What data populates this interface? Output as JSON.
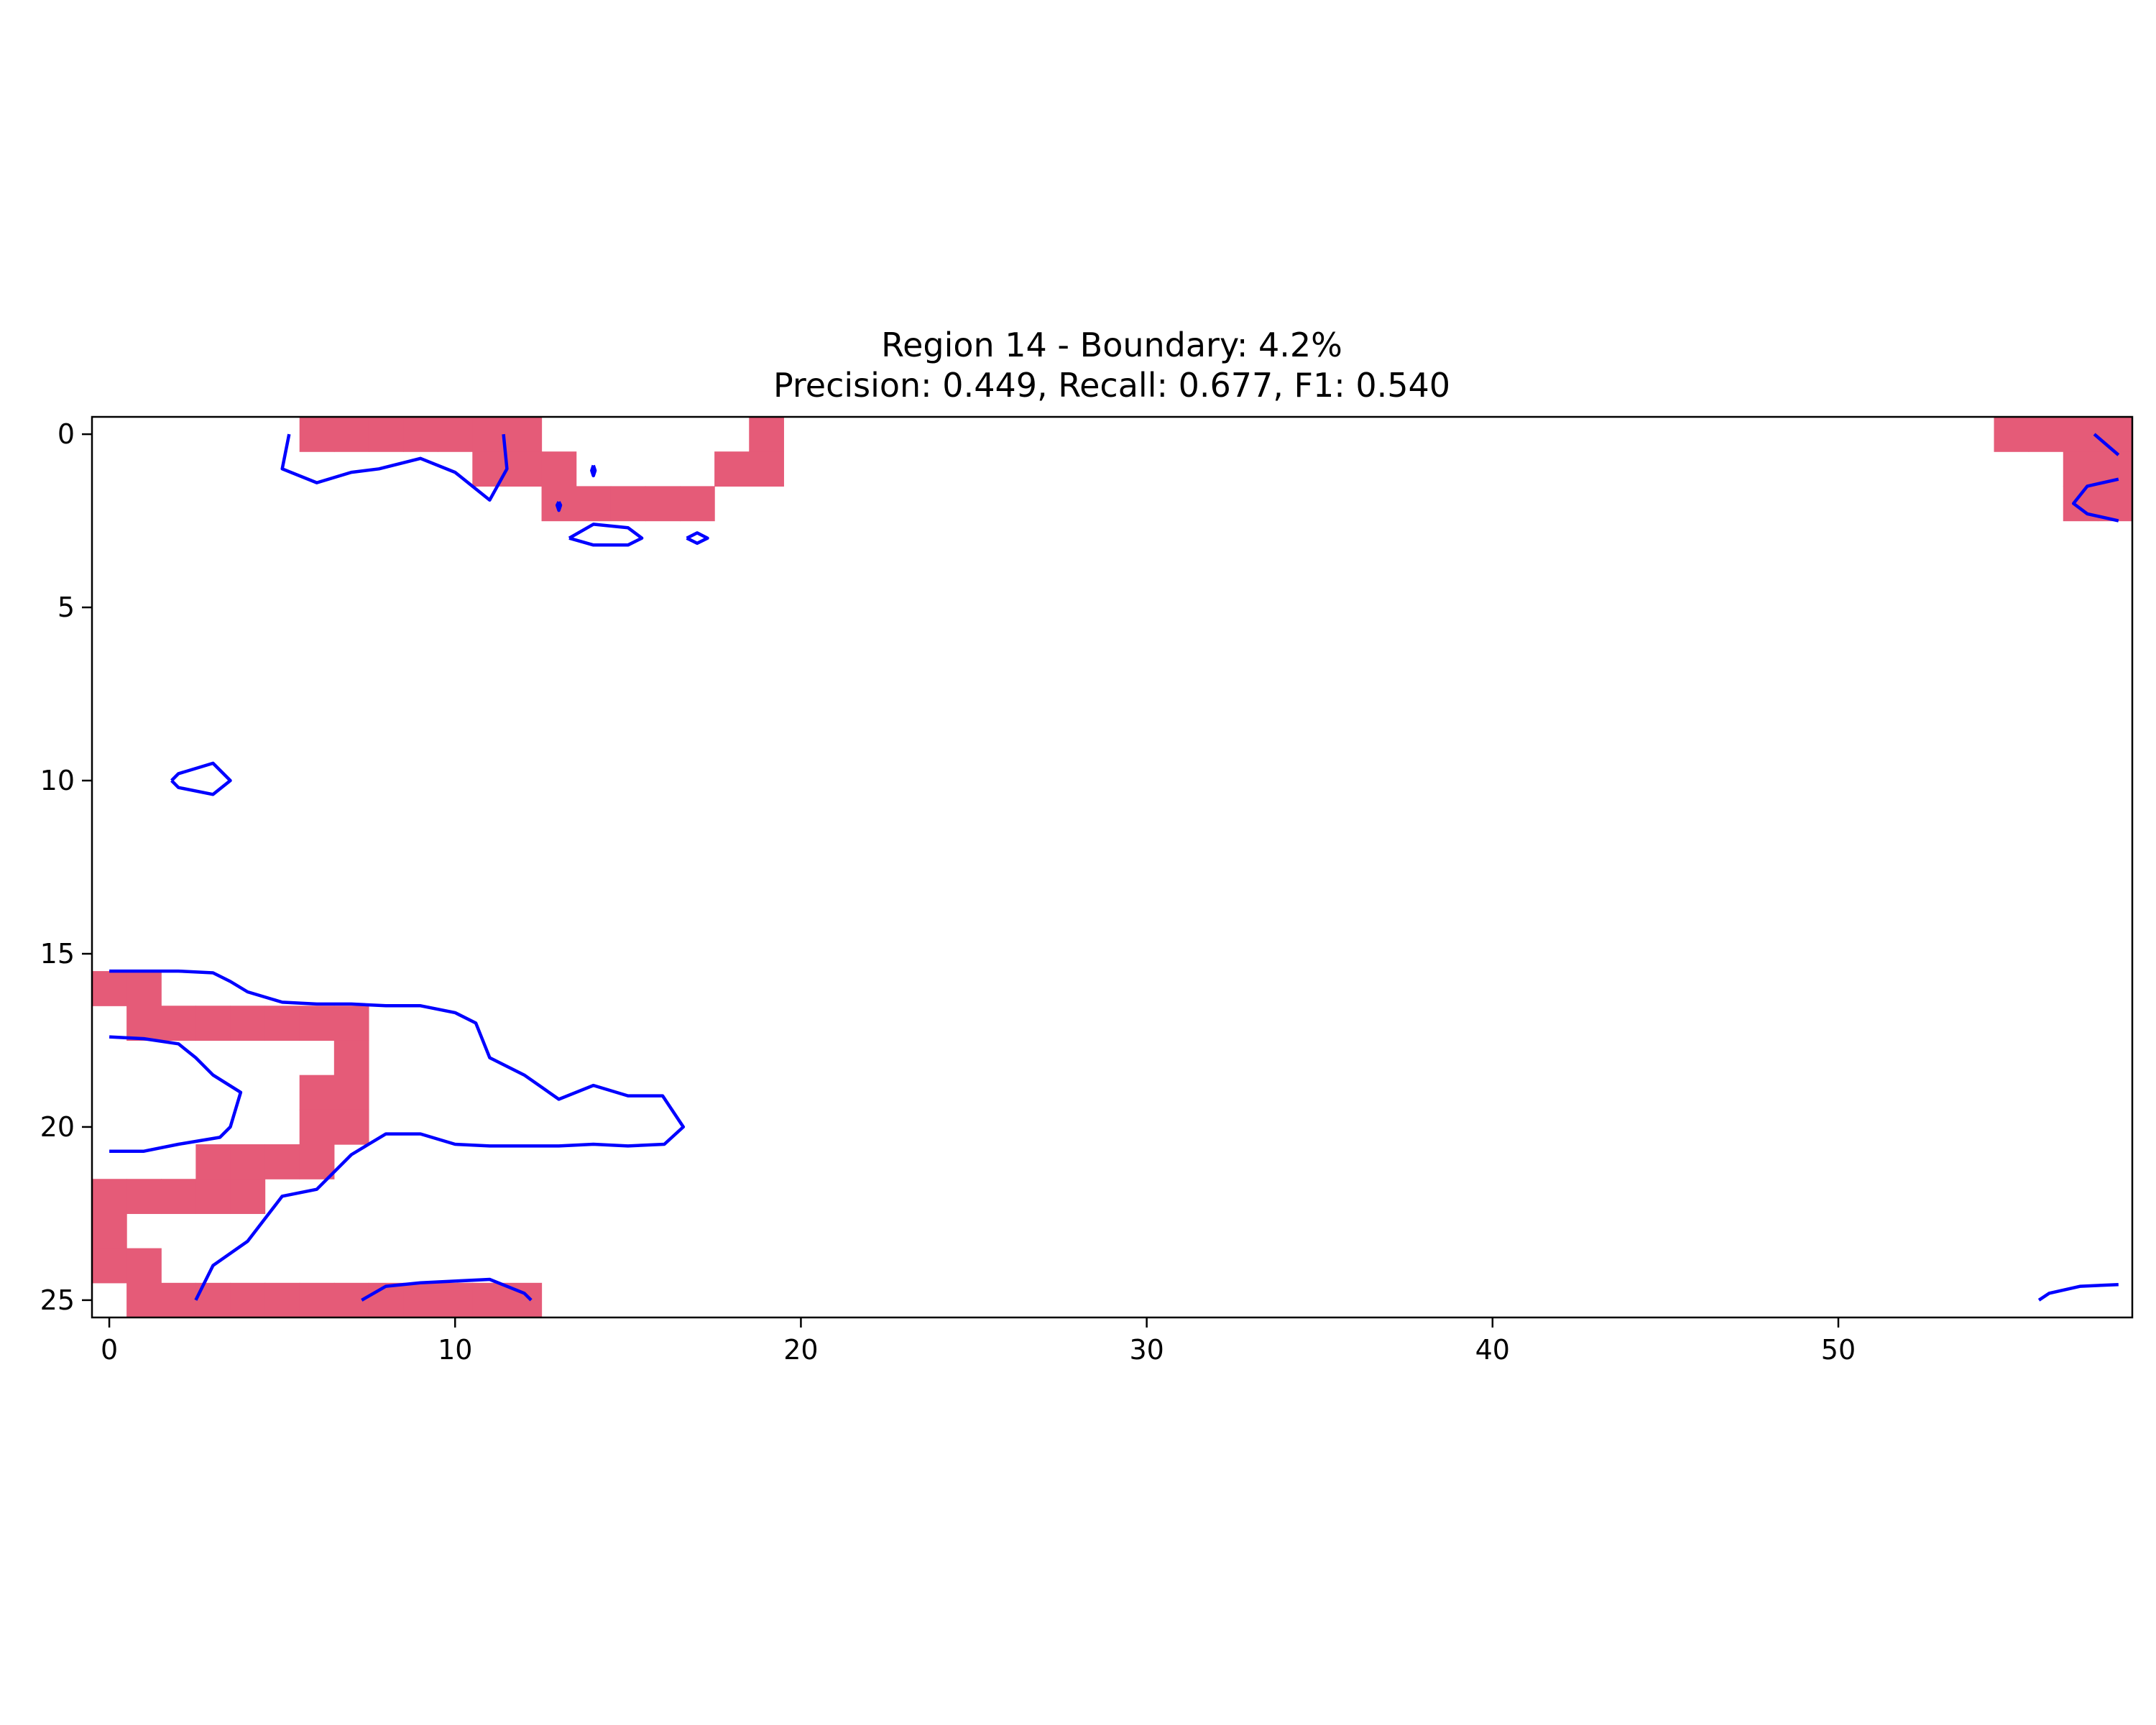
{
  "chart_data": {
    "type": "heatmap",
    "title": "Region 14 - Boundary: 4.2%",
    "subtitle": "Precision: 0.449, Recall: 0.677, F1: 0.540",
    "xlim": [
      -0.5,
      58.5
    ],
    "ylim": [
      25.5,
      -0.5
    ],
    "y_inverted": true,
    "x_ticks": [
      0,
      10,
      20,
      30,
      40,
      50
    ],
    "y_ticks": [
      0,
      5,
      10,
      15,
      20,
      25
    ],
    "grid": false,
    "colors": {
      "mask": "#e55b78",
      "contour": "#0000ff",
      "axes": "#000000",
      "background": "#ffffff"
    },
    "mask_cells": [
      [
        6,
        0
      ],
      [
        7,
        0
      ],
      [
        8,
        0
      ],
      [
        9,
        0
      ],
      [
        10,
        0
      ],
      [
        11,
        0
      ],
      [
        12,
        0
      ],
      [
        19,
        0
      ],
      [
        55,
        0
      ],
      [
        56,
        0
      ],
      [
        57,
        0
      ],
      [
        58,
        0
      ],
      [
        11,
        1
      ],
      [
        12,
        1
      ],
      [
        13,
        1
      ],
      [
        18,
        1
      ],
      [
        19,
        1
      ],
      [
        57,
        1
      ],
      [
        58,
        1
      ],
      [
        13,
        2
      ],
      [
        14,
        2
      ],
      [
        15,
        2
      ],
      [
        16,
        2
      ],
      [
        17,
        2
      ],
      [
        57,
        2
      ],
      [
        58,
        2
      ],
      [
        0,
        16
      ],
      [
        1,
        16
      ],
      [
        1,
        17
      ],
      [
        2,
        17
      ],
      [
        3,
        17
      ],
      [
        4,
        17
      ],
      [
        5,
        17
      ],
      [
        6,
        17
      ],
      [
        7,
        17
      ],
      [
        7,
        18
      ],
      [
        6,
        19
      ],
      [
        7,
        19
      ],
      [
        6,
        20
      ],
      [
        7,
        20
      ],
      [
        3,
        21
      ],
      [
        4,
        21
      ],
      [
        5,
        21
      ],
      [
        6,
        21
      ],
      [
        0,
        22
      ],
      [
        1,
        22
      ],
      [
        2,
        22
      ],
      [
        3,
        22
      ],
      [
        4,
        22
      ],
      [
        0,
        23
      ],
      [
        0,
        24
      ],
      [
        1,
        24
      ],
      [
        1,
        25
      ],
      [
        2,
        25
      ],
      [
        3,
        25
      ],
      [
        4,
        25
      ],
      [
        5,
        25
      ],
      [
        6,
        25
      ],
      [
        7,
        25
      ],
      [
        8,
        25
      ],
      [
        9,
        25
      ],
      [
        10,
        25
      ],
      [
        11,
        25
      ],
      [
        12,
        25
      ]
    ],
    "contours": [
      [
        [
          5.2,
          0
        ],
        [
          5,
          1
        ],
        [
          6,
          1.4
        ],
        [
          7,
          1.1
        ],
        [
          7.8,
          1
        ],
        [
          9,
          0.7
        ],
        [
          10,
          1.1
        ],
        [
          11,
          1.9
        ],
        [
          11.5,
          1
        ],
        [
          11.4,
          0
        ]
      ],
      [
        [
          14,
          0.9
        ],
        [
          14.05,
          1.05
        ],
        [
          14,
          1.2
        ],
        [
          13.95,
          1.05
        ],
        [
          14,
          0.9
        ]
      ],
      [
        [
          13,
          1.95
        ],
        [
          13.05,
          2.05
        ],
        [
          13,
          2.2
        ],
        [
          12.95,
          2.05
        ],
        [
          13,
          1.95
        ]
      ],
      [
        [
          13.3,
          3
        ],
        [
          14,
          2.6
        ],
        [
          15,
          2.7
        ],
        [
          15.4,
          3
        ],
        [
          15,
          3.2
        ],
        [
          14,
          3.2
        ],
        [
          13.3,
          3
        ]
      ],
      [
        [
          16.7,
          3
        ],
        [
          17,
          2.85
        ],
        [
          17.3,
          3
        ],
        [
          17,
          3.15
        ],
        [
          16.7,
          3
        ]
      ],
      [
        [
          1.8,
          10
        ],
        [
          2,
          9.8
        ],
        [
          3,
          9.5
        ],
        [
          3.5,
          10
        ],
        [
          3,
          10.4
        ],
        [
          2,
          10.2
        ],
        [
          1.8,
          10
        ]
      ],
      [
        [
          0,
          15.5
        ],
        [
          2,
          15.5
        ],
        [
          3,
          15.55
        ],
        [
          3.5,
          15.8
        ],
        [
          4,
          16.1
        ],
        [
          5,
          16.4
        ],
        [
          6,
          16.45
        ],
        [
          7,
          16.45
        ],
        [
          8,
          16.5
        ],
        [
          9,
          16.5
        ],
        [
          10,
          16.7
        ],
        [
          10.6,
          17
        ],
        [
          11,
          18
        ],
        [
          12,
          18.5
        ],
        [
          13,
          19.2
        ],
        [
          14,
          18.8
        ],
        [
          15,
          19.1
        ],
        [
          16,
          19.1
        ],
        [
          16.6,
          20
        ],
        [
          16.05,
          20.5
        ],
        [
          15,
          20.55
        ],
        [
          14,
          20.5
        ],
        [
          13,
          20.55
        ],
        [
          12,
          20.55
        ],
        [
          11,
          20.55
        ],
        [
          10,
          20.5
        ],
        [
          9,
          20.2
        ],
        [
          8,
          20.2
        ],
        [
          7.5,
          20.5
        ],
        [
          7,
          20.8
        ],
        [
          6,
          21.8
        ],
        [
          5,
          22
        ],
        [
          4,
          23.3
        ],
        [
          3,
          24
        ],
        [
          2.5,
          25
        ]
      ],
      [
        [
          0,
          17.4
        ],
        [
          1,
          17.45
        ],
        [
          2,
          17.6
        ],
        [
          2.5,
          18
        ],
        [
          3,
          18.5
        ],
        [
          3.8,
          19
        ],
        [
          3.5,
          20
        ],
        [
          3.2,
          20.3
        ],
        [
          2,
          20.5
        ],
        [
          1,
          20.7
        ],
        [
          0,
          20.7
        ]
      ],
      [
        [
          7.3,
          25
        ],
        [
          8,
          24.6
        ],
        [
          9,
          24.5
        ],
        [
          10,
          24.45
        ],
        [
          11,
          24.4
        ],
        [
          12,
          24.8
        ],
        [
          12.2,
          25
        ]
      ],
      [
        [
          57.4,
          0
        ],
        [
          58.1,
          0.6
        ]
      ],
      [
        [
          58.1,
          1.3
        ],
        [
          57.2,
          1.5
        ],
        [
          56.8,
          2
        ],
        [
          57.2,
          2.3
        ],
        [
          58.1,
          2.5
        ]
      ],
      [
        [
          55.8,
          25
        ],
        [
          56.1,
          24.8
        ],
        [
          57,
          24.6
        ],
        [
          58.1,
          24.55
        ]
      ]
    ]
  }
}
